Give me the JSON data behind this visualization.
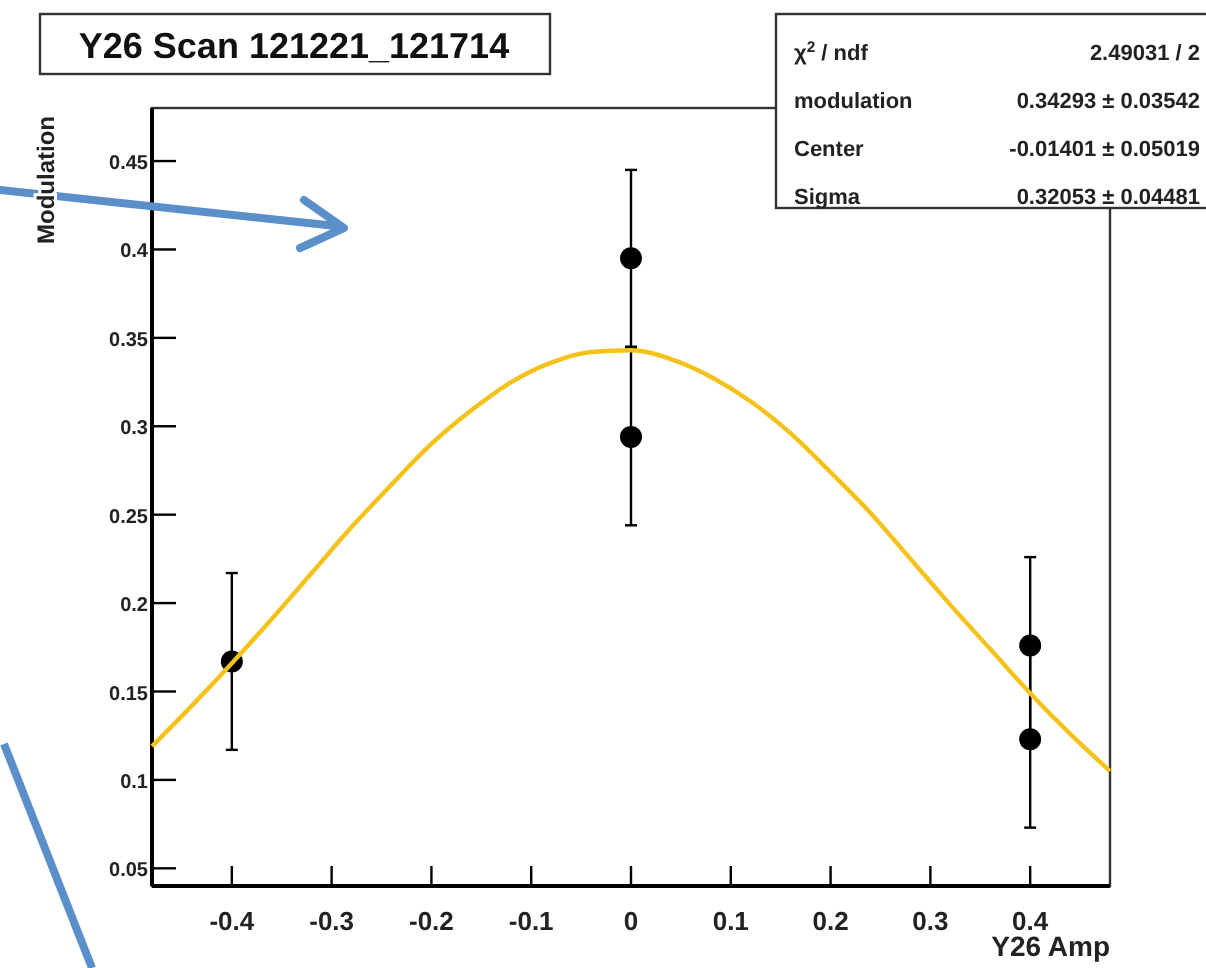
{
  "chart_data": {
    "type": "scatter",
    "title": "Y26 Scan 121221_121714",
    "xlabel": "Y26 Amp",
    "ylabel": "Modulation",
    "xlim": [
      -0.48,
      0.48
    ],
    "xticks": [
      -0.4,
      -0.3,
      -0.2,
      -0.1,
      0,
      0.1,
      0.2,
      0.3,
      0.4
    ],
    "ylim": [
      0.04,
      0.48
    ],
    "yticks": [
      0.05,
      0.1,
      0.15,
      0.2,
      0.25,
      0.3,
      0.35,
      0.4,
      0.45
    ],
    "grid": false,
    "marker": "circle",
    "annotations": [
      "χ$^{2}$ / ndf",
      "2.49031 / 2",
      "modulation",
      "0.34293 ± 0.03542",
      "Center",
      "-0.01401 ± 0.05019",
      "Sigma",
      "0.32053 ± 0.04481"
    ],
    "series": [
      {
        "color": "#000000",
        "x": [
          -0.4,
          0,
          0,
          0.4,
          0.4
        ],
        "values": [
          0.167,
          0.395,
          0.294,
          0.176,
          0.123
        ],
        "errors": [
          0.05,
          0.05,
          0.05,
          0.05,
          0.05
        ]
      },
      {
        "type": "line",
        "color": "#f5c21b",
        "marker": "none",
        "line_style": "solid",
        "x": [
          -0.48,
          -0.44,
          -0.4,
          -0.36,
          -0.32,
          -0.28,
          -0.24,
          -0.2,
          -0.16,
          -0.12,
          -0.08,
          -0.04,
          0,
          0.04,
          0.08,
          0.12,
          0.16,
          0.2,
          0.24,
          0.28,
          0.32,
          0.36,
          0.4,
          0.44,
          0.48
        ],
        "values": [
          0.119,
          0.142,
          0.166,
          0.191,
          0.217,
          0.243,
          0.267,
          0.29,
          0.309,
          0.325,
          0.336,
          0.342,
          0.343,
          0.338,
          0.328,
          0.314,
          0.296,
          0.274,
          0.251,
          0.225,
          0.199,
          0.174,
          0.149,
          0.126,
          0.105
        ]
      }
    ]
  }
}
